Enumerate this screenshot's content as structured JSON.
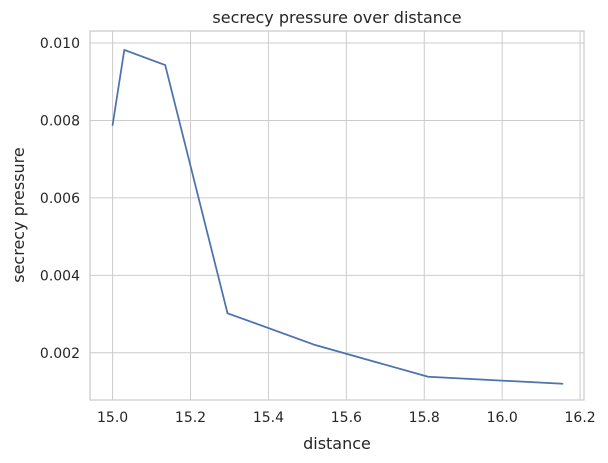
{
  "chart_data": {
    "type": "line",
    "title": "secrecy pressure over distance",
    "xlabel": "distance",
    "ylabel": "secrecy pressure",
    "xlim": [
      14.942,
      16.21
    ],
    "ylim": [
      0.00078,
      0.01031
    ],
    "x_ticks": [
      15.0,
      15.2,
      15.4,
      15.6,
      15.8,
      16.0,
      16.2
    ],
    "x_tick_labels": [
      "15.0",
      "15.2",
      "15.4",
      "15.6",
      "15.8",
      "16.0",
      "16.2"
    ],
    "y_ticks": [
      0.002,
      0.004,
      0.006,
      0.008,
      0.01
    ],
    "y_tick_labels": [
      "0.002",
      "0.004",
      "0.006",
      "0.008",
      "0.010"
    ],
    "grid": true,
    "series": [
      {
        "color": "#4c72b0",
        "x": [
          15.0,
          15.03,
          15.135,
          15.295,
          15.52,
          15.81,
          16.155
        ],
        "y": [
          0.00788,
          0.00982,
          0.00943,
          0.00302,
          0.0022,
          0.00138,
          0.0012
        ]
      }
    ]
  }
}
